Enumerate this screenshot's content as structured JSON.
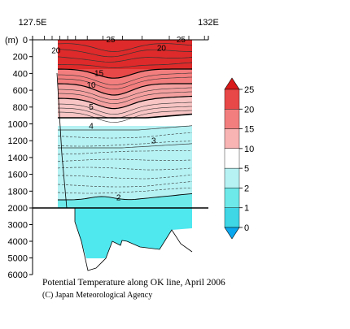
{
  "chart_data": {
    "type": "contour-section",
    "title": "Potential Temperature along OK line, April 2006",
    "credit": "(C) Japan Meteorological Agency",
    "x_axis": {
      "ticks": [
        {
          "value": 127.5,
          "label": "127.5E"
        },
        {
          "value": 132,
          "label": "132E"
        }
      ],
      "range": [
        127.5,
        132
      ]
    },
    "y_axis": {
      "label": "(m)",
      "upper_ticks": [
        0,
        200,
        400,
        600,
        800,
        1000,
        1200,
        1400,
        1600,
        1800,
        2000
      ],
      "lower_ticks": [
        3000,
        4000,
        5000,
        6000
      ],
      "upper_range": [
        0,
        2000
      ],
      "lower_range": [
        2000,
        6000
      ],
      "break_depth": 2000
    },
    "station_longitudes": [
      127.8,
      128.0,
      128.2,
      128.4,
      128.6,
      128.9,
      129.3,
      129.8,
      130.3,
      131.0,
      131.5,
      131.9
    ],
    "colorbar": {
      "levels": [
        0,
        1,
        2,
        5,
        10,
        15,
        20,
        25
      ],
      "labels": [
        "0",
        "1",
        "2",
        "5",
        "10",
        "15",
        "20",
        "25"
      ],
      "colors": [
        "#0aa6ee",
        "#3fd6e6",
        "#6ee9ea",
        "#b6f1f3",
        "#ffffff",
        "#f8b3b3",
        "#f27e7e",
        "#e84848",
        "#d91a1a"
      ]
    },
    "contour_labels": [
      {
        "text": "25",
        "lon": 129.5,
        "depth": 20
      },
      {
        "text": "25",
        "lon": 131.3,
        "depth": 20
      },
      {
        "text": "20",
        "lon": 128.1,
        "depth": 150
      },
      {
        "text": "20",
        "lon": 130.8,
        "depth": 120
      },
      {
        "text": "15",
        "lon": 129.2,
        "depth": 420
      },
      {
        "text": "10",
        "lon": 129.0,
        "depth": 560
      },
      {
        "text": "5",
        "lon": 129.0,
        "depth": 820
      },
      {
        "text": "4",
        "lon": 129.0,
        "depth": 1050
      },
      {
        "text": "3",
        "lon": 130.6,
        "depth": 1220
      },
      {
        "text": "2",
        "lon": 129.7,
        "depth": 1900
      }
    ]
  }
}
